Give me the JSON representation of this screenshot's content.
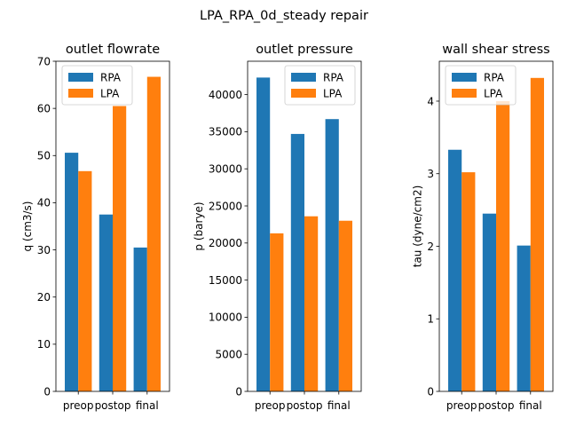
{
  "figure": {
    "suptitle": "LPA_RPA_0d_steady repair"
  },
  "colors": {
    "RPA": "#1f77b4",
    "LPA": "#ff7f0e"
  },
  "chart_data": [
    {
      "type": "bar",
      "title": "outlet flowrate",
      "xlabel": "",
      "ylabel": "q (cm3/s)",
      "categories": [
        "preop",
        "postop",
        "final"
      ],
      "ylim": [
        0,
        70
      ],
      "yticks": [
        0,
        10,
        20,
        30,
        40,
        50,
        60,
        70
      ],
      "ytick_labels": [
        "0",
        "10",
        "20",
        "30",
        "40",
        "50",
        "60",
        "70"
      ],
      "legend": "upper-left",
      "grid": false,
      "series": [
        {
          "name": "RPA",
          "values": [
            50.6,
            37.5,
            30.5
          ]
        },
        {
          "name": "LPA",
          "values": [
            46.7,
            60.5,
            66.7
          ]
        }
      ]
    },
    {
      "type": "bar",
      "title": "outlet pressure",
      "xlabel": "",
      "ylabel": "p (barye)",
      "categories": [
        "preop",
        "postop",
        "final"
      ],
      "ylim": [
        0,
        44500
      ],
      "yticks": [
        0,
        5000,
        10000,
        15000,
        20000,
        25000,
        30000,
        35000,
        40000
      ],
      "ytick_labels": [
        "0",
        "5000",
        "10000",
        "15000",
        "20000",
        "25000",
        "30000",
        "35000",
        "40000"
      ],
      "legend": "upper-right",
      "grid": false,
      "series": [
        {
          "name": "RPA",
          "values": [
            42300,
            34700,
            36700
          ]
        },
        {
          "name": "LPA",
          "values": [
            21300,
            23600,
            23000
          ]
        }
      ]
    },
    {
      "type": "bar",
      "title": "wall shear stress",
      "xlabel": "",
      "ylabel": "tau (dyne/cm2)",
      "categories": [
        "preop",
        "postop",
        "final"
      ],
      "ylim": [
        0,
        4.55
      ],
      "yticks": [
        0,
        1,
        2,
        3,
        4
      ],
      "ytick_labels": [
        "0",
        "1",
        "2",
        "3",
        "4"
      ],
      "legend": "upper-left",
      "grid": false,
      "series": [
        {
          "name": "RPA",
          "values": [
            3.33,
            2.45,
            2.01
          ]
        },
        {
          "name": "LPA",
          "values": [
            3.02,
            4.0,
            4.32
          ]
        }
      ]
    }
  ]
}
